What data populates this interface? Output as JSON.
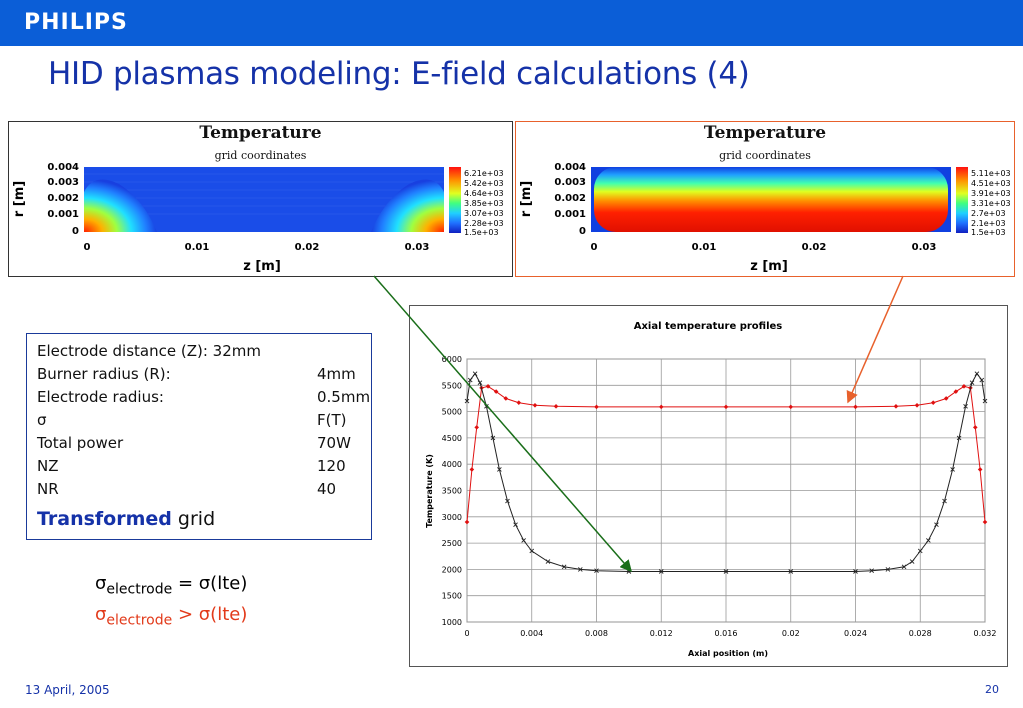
{
  "header": {
    "brand": "PHILIPS",
    "title": "HID plasmas modeling: E-field calculations (4)"
  },
  "panel_left": {
    "title": "Temperature",
    "subtitle": "grid coordinates",
    "ylabel": "r [m]",
    "xlabel": "z [m]",
    "yticks": [
      "0.004",
      "0.003",
      "0.002",
      "0.001",
      "0"
    ],
    "xticks": [
      "0",
      "0.01",
      "0.02",
      "0.03"
    ],
    "legend": [
      "6.21e+03",
      "5.42e+03",
      "4.64e+03",
      "3.85e+03",
      "3.07e+03",
      "2.28e+03",
      "1.5e+03"
    ]
  },
  "panel_right": {
    "title": "Temperature",
    "subtitle": "grid coordinates",
    "ylabel": "r [m]",
    "xlabel": "z [m]",
    "yticks": [
      "0.004",
      "0.003",
      "0.002",
      "0.001",
      "0"
    ],
    "xticks": [
      "0",
      "0.01",
      "0.02",
      "0.03"
    ],
    "legend": [
      "5.11e+03",
      "4.51e+03",
      "3.91e+03",
      "3.31e+03",
      "2.7e+03",
      "2.1e+03",
      "1.5e+03"
    ]
  },
  "info": {
    "rows": [
      {
        "label": "Electrode distance (Z):  32mm",
        "value": ""
      },
      {
        "label": "Burner radius (R):",
        "value": "4mm"
      },
      {
        "label": "Electrode radius:",
        "value": "0.5mm"
      },
      {
        "label": "σ",
        "value": "F(T)"
      },
      {
        "label": "Total power",
        "value": "70W"
      },
      {
        "label": "NZ",
        "value": "120"
      },
      {
        "label": "NR",
        "value": "40"
      }
    ],
    "transformed_bold": "Transformed",
    "transformed_rest": " grid"
  },
  "sigma": {
    "line1": {
      "sym": "σ",
      "sub": "electrode",
      "rest": " = σ(lte)",
      "color": "#000000"
    },
    "line2": {
      "sym": "σ",
      "sub": "electrode",
      "rest": " > σ(lte)",
      "color": "#e23a1a"
    }
  },
  "chart_data": {
    "type": "line",
    "title": "Axial temperature profiles",
    "xlabel": "Axial position (m)",
    "ylabel": "Temperature (K)",
    "xlim": [
      0,
      0.032
    ],
    "ylim": [
      1000,
      6000
    ],
    "xticks": [
      "0",
      "0.004",
      "0.008",
      "0.012",
      "0.016",
      "0.02",
      "0.024",
      "0.028",
      "0.032"
    ],
    "yticks": [
      "1000",
      "1500",
      "2000",
      "2500",
      "3000",
      "3500",
      "4000",
      "4500",
      "5000",
      "5500",
      "6000"
    ],
    "grid": true,
    "series": [
      {
        "color": "#e01010",
        "marker": "diamond",
        "x": [
          0,
          0.0003,
          0.0006,
          0.0009,
          0.0013,
          0.0018,
          0.0024,
          0.0032,
          0.0042,
          0.0055,
          0.008,
          0.012,
          0.016,
          0.02,
          0.024,
          0.0265,
          0.0278,
          0.0288,
          0.0296,
          0.0302,
          0.0307,
          0.0311,
          0.0314,
          0.0317,
          0.032
        ],
        "y": [
          2900,
          3900,
          4700,
          5450,
          5480,
          5380,
          5250,
          5170,
          5120,
          5100,
          5090,
          5090,
          5090,
          5090,
          5090,
          5100,
          5120,
          5170,
          5250,
          5380,
          5480,
          5450,
          4700,
          3900,
          2900
        ]
      },
      {
        "color": "#222222",
        "marker": "x",
        "x": [
          0,
          0.0002,
          0.0005,
          0.0008,
          0.0012,
          0.0016,
          0.002,
          0.0025,
          0.003,
          0.0035,
          0.004,
          0.005,
          0.006,
          0.007,
          0.008,
          0.01,
          0.012,
          0.016,
          0.02,
          0.024,
          0.025,
          0.026,
          0.027,
          0.0275,
          0.028,
          0.0285,
          0.029,
          0.0295,
          0.03,
          0.0304,
          0.0308,
          0.0312,
          0.0315,
          0.0318,
          0.032
        ],
        "y": [
          5200,
          5600,
          5720,
          5550,
          5100,
          4500,
          3900,
          3300,
          2850,
          2550,
          2350,
          2150,
          2050,
          2000,
          1975,
          1960,
          1960,
          1960,
          1960,
          1960,
          1975,
          2000,
          2050,
          2150,
          2350,
          2550,
          2850,
          3300,
          3900,
          4500,
          5100,
          5550,
          5720,
          5600,
          5200
        ]
      }
    ]
  },
  "footer": {
    "date": "13 April, 2005",
    "page": "20"
  }
}
